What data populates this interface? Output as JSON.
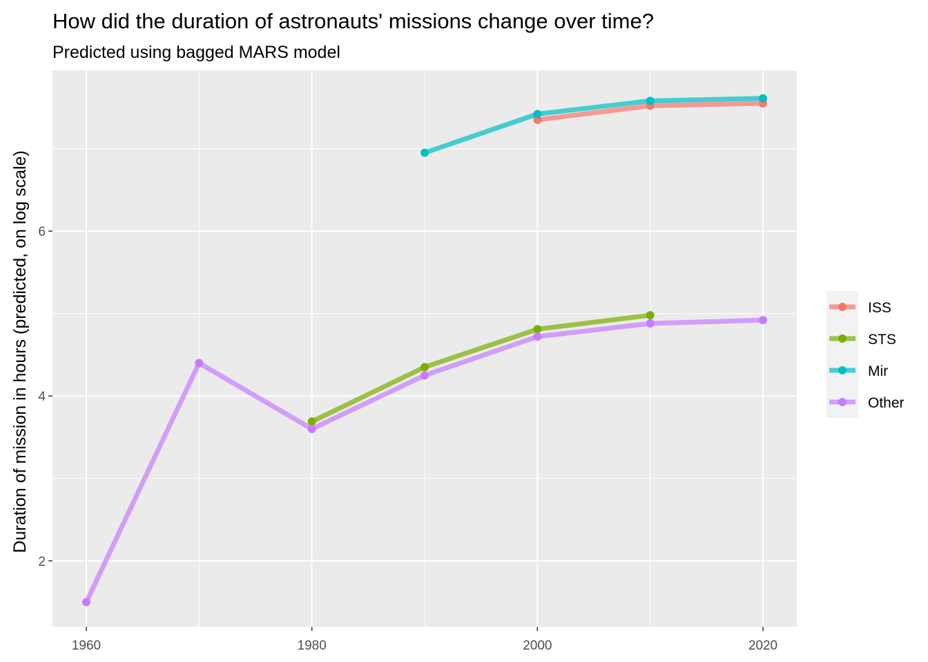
{
  "chart_data": {
    "type": "line",
    "title": "How did the duration of astronauts' missions change over time?",
    "subtitle": "Predicted using bagged MARS model",
    "xlabel": "",
    "ylabel": "Duration of mission in hours (predicted, on log scale)",
    "x_ticks": [
      "1960",
      "1980",
      "2000",
      "2020"
    ],
    "y_ticks": [
      "2",
      "4",
      "6"
    ],
    "xlim": [
      1957,
      2023
    ],
    "ylim": [
      1.2,
      7.95
    ],
    "grid": true,
    "legend_position": "right",
    "series": [
      {
        "name": "ISS",
        "color": "#F8766D",
        "x": [
          2000,
          2010,
          2020
        ],
        "y": [
          7.35,
          7.52,
          7.55
        ]
      },
      {
        "name": "STS",
        "color": "#7CAE00",
        "x": [
          1980,
          1990,
          2000,
          2010
        ],
        "y": [
          3.69,
          4.35,
          4.81,
          4.98
        ]
      },
      {
        "name": "Mir",
        "color": "#00BFC4",
        "x": [
          1990,
          2000,
          2010,
          2020
        ],
        "y": [
          6.95,
          7.42,
          7.58,
          7.61
        ]
      },
      {
        "name": "Other",
        "color": "#C77CFF",
        "x": [
          1960,
          1970,
          1980,
          1990,
          2000,
          2010,
          2020
        ],
        "y": [
          1.5,
          4.4,
          3.6,
          4.25,
          4.72,
          4.88,
          4.92
        ]
      }
    ]
  }
}
